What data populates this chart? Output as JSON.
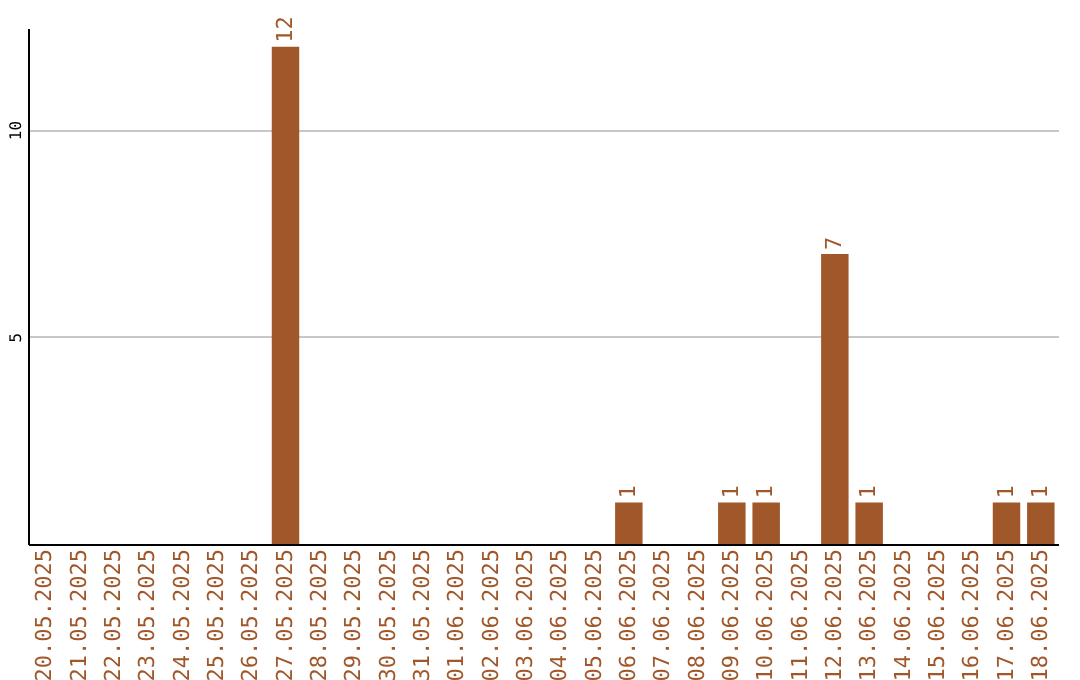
{
  "chart_data": {
    "type": "bar",
    "categories": [
      "20.05.2025",
      "21.05.2025",
      "22.05.2025",
      "23.05.2025",
      "24.05.2025",
      "25.05.2025",
      "26.05.2025",
      "27.05.2025",
      "28.05.2025",
      "29.05.2025",
      "30.05.2025",
      "31.05.2025",
      "01.06.2025",
      "02.06.2025",
      "03.06.2025",
      "04.06.2025",
      "05.06.2025",
      "06.06.2025",
      "07.06.2025",
      "08.06.2025",
      "09.06.2025",
      "10.06.2025",
      "11.06.2025",
      "12.06.2025",
      "13.06.2025",
      "14.06.2025",
      "15.06.2025",
      "16.06.2025",
      "17.06.2025",
      "18.06.2025"
    ],
    "values": [
      0,
      0,
      0,
      0,
      0,
      0,
      0,
      12,
      0,
      0,
      0,
      0,
      0,
      0,
      0,
      0,
      0,
      1,
      0,
      0,
      1,
      1,
      0,
      7,
      1,
      0,
      0,
      0,
      1,
      1
    ],
    "value_labels": [
      null,
      null,
      null,
      null,
      null,
      null,
      null,
      "12",
      null,
      null,
      null,
      null,
      null,
      null,
      null,
      null,
      null,
      "1",
      null,
      null,
      "1",
      "1",
      null,
      "7",
      "1",
      null,
      null,
      null,
      "1",
      "1"
    ],
    "color": "#a0572a",
    "ylim": [
      0,
      12.45
    ],
    "yticks": [
      5,
      10
    ],
    "grid": "y"
  }
}
